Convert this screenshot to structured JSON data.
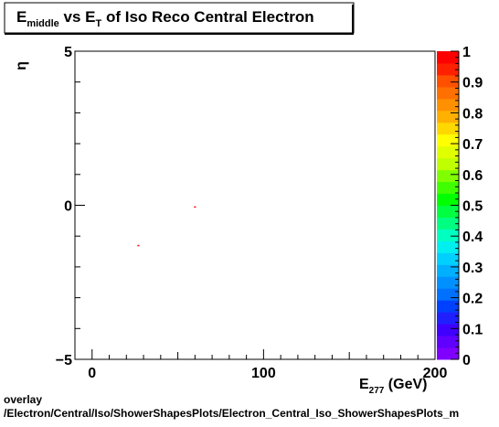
{
  "chart_data": {
    "type": "heatmap",
    "title": {
      "part1": "E",
      "part1_sub": "middle",
      "part2": " vs E",
      "part2_sub": "T",
      "part3": " of Iso Reco Central  Electron"
    },
    "xlabel": {
      "main": "E",
      "sub": "277",
      "unit": " (GeV)"
    },
    "ylabel": "η",
    "xlim": [
      -10,
      200
    ],
    "ylim": [
      -5,
      5
    ],
    "x_ticks": [
      0,
      100,
      200
    ],
    "x_tick_labels": [
      "0",
      "100",
      "200"
    ],
    "y_ticks": [
      -5,
      0,
      5
    ],
    "y_tick_labels": [
      "−5",
      "0",
      "5"
    ],
    "z_range": [
      0,
      1
    ],
    "z_ticks": [
      0,
      0.1,
      0.2,
      0.3,
      0.4,
      0.5,
      0.6,
      0.7,
      0.8,
      0.9,
      1
    ],
    "z_tick_labels": [
      "0",
      "0.1",
      "0.2",
      "0.3",
      "0.4",
      "0.5",
      "0.6",
      "0.7",
      "0.8",
      "0.9",
      "1"
    ],
    "palette": [
      "#8000ff",
      "#6000ff",
      "#4000ff",
      "#2020ff",
      "#0040ff",
      "#0070ff",
      "#0090ff",
      "#00b0ff",
      "#00d0ff",
      "#00f0f0",
      "#00ffc0",
      "#00ff80",
      "#00ff40",
      "#00ff00",
      "#40ff00",
      "#80ff00",
      "#c0ff00",
      "#e0ff00",
      "#ffff00",
      "#ffd800",
      "#ffb000",
      "#ff9000",
      "#ff7000",
      "#ff5000",
      "#ff2000",
      "#ff0000"
    ],
    "points": [
      {
        "x": 60,
        "y": -0.05,
        "z": 1,
        "color": "#ff0000"
      },
      {
        "x": 27,
        "y": -1.3,
        "z": 1,
        "color": "#ff0000"
      }
    ],
    "grid": false
  },
  "footer": {
    "line1": "overlay",
    "line2": "/Electron/Central/Iso/ShowerShapesPlots/Electron_Central_Iso_ShowerShapesPlots_m"
  }
}
